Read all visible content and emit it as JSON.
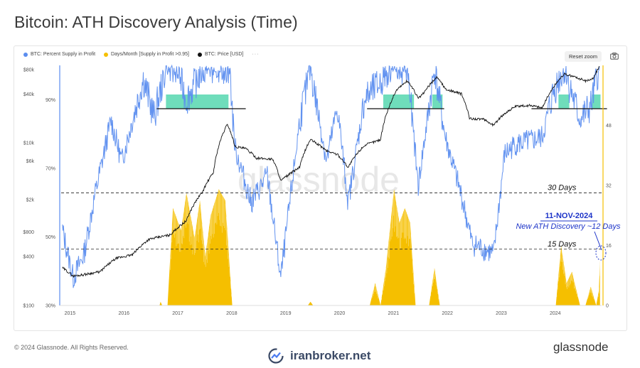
{
  "page": {
    "title": "Bitcoin: ATH Discovery Analysis (Time)",
    "copyright": "© 2024 Glassnode. All Rights Reserved.",
    "brand": "glassnode",
    "broker": "iranbroker.net",
    "watermark": "glassnode"
  },
  "toolbar": {
    "reset_zoom": "Reset zoom",
    "more": "···",
    "camera_icon": "camera-icon"
  },
  "colors": {
    "supply": "#5b8def",
    "days": "#f5bf00",
    "price": "#111111",
    "ath_zone": "#3fd1a4",
    "annotation": "#1d34c8"
  },
  "chart_data": {
    "type": "line",
    "x_ticks": [
      "2015",
      "2016",
      "2017",
      "2018",
      "2019",
      "2020",
      "2021",
      "2022",
      "2023",
      "2024"
    ],
    "price_axis": {
      "ticks": [
        "$100",
        "$400",
        "$800",
        "$2k",
        "$6k",
        "$10k",
        "$40k",
        "$80k"
      ],
      "scale": "log",
      "range": [
        100,
        90000
      ]
    },
    "percent_axis": {
      "ticks": [
        "30%",
        "50%",
        "70%",
        "90%"
      ],
      "range": [
        30,
        100
      ]
    },
    "days_axis": {
      "ticks": [
        "0",
        "16",
        "32",
        "48"
      ],
      "range": [
        0,
        64
      ]
    },
    "legend": [
      {
        "name": "BTC: Percent Supply in Profit",
        "color": "#5b8def"
      },
      {
        "name": "Days/Month [Supply in Profit >0.95]",
        "color": "#f5bf00"
      },
      {
        "name": "BTC: Price [USD]",
        "color": "#111111"
      }
    ],
    "series": [
      {
        "name": "BTC: Price [USD]",
        "axis": "price",
        "points": [
          [
            2014.9,
            290
          ],
          [
            2015.1,
            230
          ],
          [
            2015.3,
            240
          ],
          [
            2015.6,
            260
          ],
          [
            2015.9,
            380
          ],
          [
            2016.2,
            420
          ],
          [
            2016.5,
            650
          ],
          [
            2016.9,
            740
          ],
          [
            2017.2,
            1100
          ],
          [
            2017.5,
            2500
          ],
          [
            2017.7,
            4300
          ],
          [
            2017.96,
            17000
          ],
          [
            2018.1,
            9000
          ],
          [
            2018.3,
            8500
          ],
          [
            2018.5,
            6500
          ],
          [
            2018.8,
            6300
          ],
          [
            2018.95,
            3400
          ],
          [
            2019.3,
            5000
          ],
          [
            2019.5,
            11000
          ],
          [
            2019.8,
            8000
          ],
          [
            2020.0,
            7200
          ],
          [
            2020.2,
            5000
          ],
          [
            2020.5,
            9300
          ],
          [
            2020.8,
            11000
          ],
          [
            2020.97,
            29000
          ],
          [
            2021.1,
            45000
          ],
          [
            2021.3,
            58000
          ],
          [
            2021.5,
            35000
          ],
          [
            2021.6,
            41000
          ],
          [
            2021.85,
            65000
          ],
          [
            2022.0,
            46000
          ],
          [
            2022.3,
            40000
          ],
          [
            2022.45,
            20000
          ],
          [
            2022.7,
            19500
          ],
          [
            2022.9,
            16500
          ],
          [
            2023.1,
            23000
          ],
          [
            2023.3,
            28000
          ],
          [
            2023.6,
            29000
          ],
          [
            2023.8,
            27000
          ],
          [
            2023.95,
            42000
          ],
          [
            2024.2,
            70000
          ],
          [
            2024.4,
            65000
          ],
          [
            2024.6,
            58000
          ],
          [
            2024.75,
            62000
          ],
          [
            2024.86,
            88000
          ]
        ]
      },
      {
        "name": "BTC: Percent Supply in Profit",
        "axis": "percent",
        "points": [
          [
            2014.9,
            52
          ],
          [
            2015.1,
            38
          ],
          [
            2015.3,
            45
          ],
          [
            2015.5,
            62
          ],
          [
            2015.8,
            84
          ],
          [
            2016.0,
            72
          ],
          [
            2016.4,
            96
          ],
          [
            2016.6,
            85
          ],
          [
            2016.8,
            98
          ],
          [
            2017.0,
            100
          ],
          [
            2017.2,
            90
          ],
          [
            2017.5,
            99
          ],
          [
            2017.8,
            100
          ],
          [
            2018.0,
            99
          ],
          [
            2018.1,
            76
          ],
          [
            2018.4,
            60
          ],
          [
            2018.7,
            68
          ],
          [
            2018.95,
            38
          ],
          [
            2019.3,
            84
          ],
          [
            2019.5,
            99
          ],
          [
            2019.8,
            72
          ],
          [
            2020.0,
            88
          ],
          [
            2020.2,
            60
          ],
          [
            2020.5,
            90
          ],
          [
            2020.8,
            95
          ],
          [
            2021.0,
            100
          ],
          [
            2021.3,
            99
          ],
          [
            2021.5,
            65
          ],
          [
            2021.8,
            99
          ],
          [
            2022.0,
            79
          ],
          [
            2022.3,
            62
          ],
          [
            2022.5,
            48
          ],
          [
            2022.9,
            45
          ],
          [
            2023.1,
            74
          ],
          [
            2023.3,
            77
          ],
          [
            2023.6,
            78
          ],
          [
            2023.8,
            79
          ],
          [
            2024.0,
            92
          ],
          [
            2024.2,
            99
          ],
          [
            2024.5,
            84
          ],
          [
            2024.7,
            88
          ],
          [
            2024.86,
            100
          ]
        ]
      },
      {
        "name": "Days/Month [Supply in Profit >0.95]",
        "axis": "days",
        "type": "area",
        "points": [
          [
            2016.7,
            0
          ],
          [
            2016.72,
            1
          ],
          [
            2016.75,
            0
          ],
          [
            2016.85,
            0
          ],
          [
            2016.95,
            26
          ],
          [
            2017.1,
            20
          ],
          [
            2017.2,
            30
          ],
          [
            2017.35,
            18
          ],
          [
            2017.45,
            28
          ],
          [
            2017.55,
            13
          ],
          [
            2017.65,
            24
          ],
          [
            2017.8,
            31
          ],
          [
            2017.92,
            28
          ],
          [
            2018.05,
            0
          ],
          [
            2019.45,
            0
          ],
          [
            2019.5,
            1
          ],
          [
            2019.55,
            0
          ],
          [
            2020.6,
            0
          ],
          [
            2020.7,
            6
          ],
          [
            2020.8,
            0
          ],
          [
            2020.9,
            10
          ],
          [
            2021.05,
            31
          ],
          [
            2021.15,
            22
          ],
          [
            2021.25,
            26
          ],
          [
            2021.35,
            22
          ],
          [
            2021.45,
            0
          ],
          [
            2021.7,
            0
          ],
          [
            2021.8,
            10
          ],
          [
            2021.9,
            0
          ],
          [
            2024.05,
            0
          ],
          [
            2024.15,
            16
          ],
          [
            2024.25,
            6
          ],
          [
            2024.35,
            9
          ],
          [
            2024.5,
            0
          ],
          [
            2024.6,
            0
          ],
          [
            2024.7,
            5
          ],
          [
            2024.8,
            0
          ],
          [
            2024.85,
            4
          ],
          [
            2024.87,
            12
          ]
        ]
      }
    ],
    "ath_periods": [
      [
        2016.82,
        2017.98
      ],
      [
        2020.85,
        2021.42
      ],
      [
        2021.76,
        2021.95
      ],
      [
        2024.1,
        2024.3
      ],
      [
        2024.72,
        2024.88
      ]
    ],
    "ath_level_lines": [
      [
        2016.65,
        2018.3
      ],
      [
        2020.55,
        2021.98
      ],
      [
        2023.6,
        2025.0
      ]
    ],
    "reference_lines": [
      {
        "label": "30 Days",
        "value": 30,
        "axis": "days"
      },
      {
        "label": "15 Days",
        "value": 15,
        "axis": "days"
      }
    ],
    "annotations": [
      "11-NOV-2024",
      "New ATH Discovery ~12 Days"
    ],
    "grid": true
  }
}
